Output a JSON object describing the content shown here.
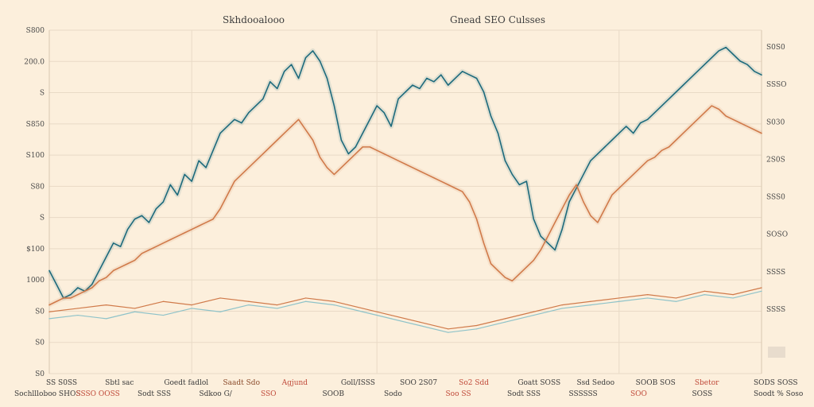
{
  "titles": {
    "left": "Skhdooalooo",
    "right": "Gnead SEO Culsses"
  },
  "colors": {
    "background": "#fcefdc",
    "teal": "#1d6a7c",
    "orange": "#d07a4a",
    "light_teal": "#8fc3c9",
    "grid": "#e9dac6"
  },
  "chart_data": {
    "type": "line",
    "title": "",
    "y_ticks_left": [
      "S800",
      "200.0",
      "S",
      "S850",
      "S100",
      "S80",
      "S",
      "$100",
      "1000",
      "S0",
      "S0",
      "S0"
    ],
    "y_ticks_right": [
      "S0S0",
      "SSSO",
      "S030",
      "2S0S",
      "SSS0",
      "SOSO",
      "SSSS",
      "SSSS"
    ],
    "x_tick_labels_top": [
      "SS S0SS",
      "Sbtl sac",
      "Goedt fadlol",
      "Saadt Sdo",
      "Agjund",
      "Goll/ISSS",
      "SOO 2S07",
      "So2 Sdd",
      "Goatt SOSS",
      "Ssd Sedoo",
      "SOOB SOS",
      "Sbetor",
      "SODS SOSS"
    ],
    "x_tick_labels_bottom": [
      "Sochllloboo SHOS",
      "SSSO OOSS",
      "Sodt SSS",
      "Sdkoo G/",
      "SSO",
      "SOOB",
      "Sodo",
      "Soo SS",
      "Sodt SSS",
      "SSSSSS",
      "SOO",
      "SOSS",
      "Soodt % Soso"
    ],
    "x_range": [
      0,
      100
    ],
    "y_range": [
      0,
      100
    ],
    "series": [
      {
        "color": "teal",
        "x": [
          0,
          1,
          2,
          3,
          4,
          5,
          6,
          7,
          8,
          9,
          10,
          11,
          12,
          13,
          14,
          15,
          16,
          17,
          18,
          19,
          20,
          21,
          22,
          23,
          24,
          25,
          26,
          27,
          28,
          29,
          30,
          31,
          32,
          33,
          34,
          35,
          36,
          37,
          38,
          39,
          40,
          41,
          42,
          43,
          44,
          45,
          46,
          47,
          48,
          49,
          50,
          51,
          52,
          53,
          54,
          55,
          56,
          57,
          58,
          59,
          60,
          61,
          62,
          63,
          64,
          65,
          66,
          67,
          68,
          69,
          70,
          71,
          72,
          73,
          74,
          75,
          76,
          77,
          78,
          79,
          80,
          81,
          82,
          83,
          84,
          85,
          86,
          87,
          88,
          89,
          90,
          91,
          92,
          93,
          94,
          95,
          96,
          97,
          98,
          99,
          100
        ],
        "y": [
          30,
          26,
          22,
          23,
          25,
          24,
          26,
          30,
          34,
          38,
          37,
          42,
          45,
          46,
          44,
          48,
          50,
          55,
          52,
          58,
          56,
          62,
          60,
          65,
          70,
          72,
          74,
          73,
          76,
          78,
          80,
          85,
          83,
          88,
          90,
          86,
          92,
          94,
          91,
          86,
          78,
          68,
          64,
          66,
          70,
          74,
          78,
          76,
          72,
          80,
          82,
          84,
          83,
          86,
          85,
          87,
          84,
          86,
          88,
          87,
          86,
          82,
          75,
          70,
          62,
          58,
          55,
          56,
          45,
          40,
          38,
          36,
          42,
          50,
          54,
          58,
          62,
          64,
          66,
          68,
          70,
          72,
          70,
          73,
          74,
          76,
          78,
          80,
          82,
          84,
          86,
          88,
          90,
          92,
          94,
          95,
          93,
          91,
          90,
          88,
          87
        ]
      },
      {
        "color": "orange",
        "x": [
          0,
          1,
          2,
          3,
          4,
          5,
          6,
          7,
          8,
          9,
          10,
          11,
          12,
          13,
          14,
          15,
          16,
          17,
          18,
          19,
          20,
          21,
          22,
          23,
          24,
          25,
          26,
          27,
          28,
          29,
          30,
          31,
          32,
          33,
          34,
          35,
          36,
          37,
          38,
          39,
          40,
          41,
          42,
          43,
          44,
          45,
          46,
          47,
          48,
          49,
          50,
          51,
          52,
          53,
          54,
          55,
          56,
          57,
          58,
          59,
          60,
          61,
          62,
          63,
          64,
          65,
          66,
          67,
          68,
          69,
          70,
          71,
          72,
          73,
          74,
          75,
          76,
          77,
          78,
          79,
          80,
          81,
          82,
          83,
          84,
          85,
          86,
          87,
          88,
          89,
          90,
          91,
          92,
          93,
          94,
          95,
          96,
          97,
          98,
          99,
          100
        ],
        "y": [
          20,
          21,
          22,
          22,
          23,
          24,
          25,
          27,
          28,
          30,
          31,
          32,
          33,
          35,
          36,
          37,
          38,
          39,
          40,
          41,
          42,
          43,
          44,
          45,
          48,
          52,
          56,
          58,
          60,
          62,
          64,
          66,
          68,
          70,
          72,
          74,
          71,
          68,
          63,
          60,
          58,
          60,
          62,
          64,
          66,
          66,
          65,
          64,
          63,
          62,
          61,
          60,
          59,
          58,
          57,
          56,
          55,
          54,
          53,
          50,
          45,
          38,
          32,
          30,
          28,
          27,
          29,
          31,
          33,
          36,
          40,
          44,
          48,
          52,
          55,
          50,
          46,
          44,
          48,
          52,
          54,
          56,
          58,
          60,
          62,
          63,
          65,
          66,
          68,
          70,
          72,
          74,
          76,
          78,
          77,
          75,
          74,
          73,
          72,
          71,
          70
        ]
      },
      {
        "color": "light_teal",
        "x": [
          0,
          4,
          8,
          12,
          16,
          20,
          24,
          28,
          32,
          36,
          40,
          44,
          48,
          52,
          56,
          60,
          64,
          68,
          72,
          76,
          80,
          84,
          88,
          92,
          96,
          100
        ],
        "y": [
          16,
          17,
          16,
          18,
          17,
          19,
          18,
          20,
          19,
          21,
          20,
          18,
          16,
          14,
          12,
          13,
          15,
          17,
          19,
          20,
          21,
          22,
          21,
          23,
          22,
          24
        ]
      },
      {
        "color": "orange",
        "x": [
          0,
          4,
          8,
          12,
          16,
          20,
          24,
          28,
          32,
          36,
          40,
          44,
          48,
          52,
          56,
          60,
          64,
          68,
          72,
          76,
          80,
          84,
          88,
          92,
          96,
          100
        ],
        "y": [
          18,
          19,
          20,
          19,
          21,
          20,
          22,
          21,
          20,
          22,
          21,
          19,
          17,
          15,
          13,
          14,
          16,
          18,
          20,
          21,
          22,
          23,
          22,
          24,
          23,
          25
        ]
      }
    ]
  }
}
